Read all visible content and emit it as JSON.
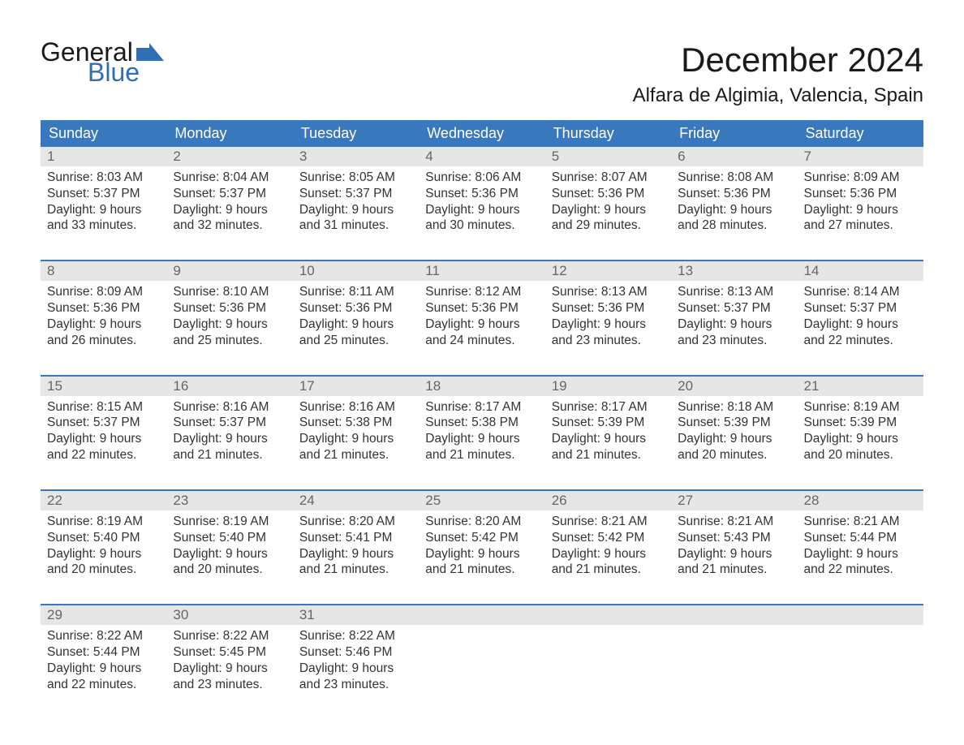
{
  "logo": {
    "text1": "General",
    "text2": "Blue",
    "flag_color": "#2f6eb5"
  },
  "title": "December 2024",
  "location": "Alfara de Algimia, Valencia, Spain",
  "colors": {
    "header_bg": "#3a78bd",
    "header_text": "#ffffff",
    "daynum_bg": "#e6e6e6",
    "daynum_text": "#666666",
    "body_text": "#333333",
    "week_border": "#3a78bd"
  },
  "days_of_week": [
    "Sunday",
    "Monday",
    "Tuesday",
    "Wednesday",
    "Thursday",
    "Friday",
    "Saturday"
  ],
  "weeks": [
    [
      {
        "n": "1",
        "sunrise": "8:03 AM",
        "sunset": "5:37 PM",
        "dl1": "9 hours",
        "dl2": "and 33 minutes."
      },
      {
        "n": "2",
        "sunrise": "8:04 AM",
        "sunset": "5:37 PM",
        "dl1": "9 hours",
        "dl2": "and 32 minutes."
      },
      {
        "n": "3",
        "sunrise": "8:05 AM",
        "sunset": "5:37 PM",
        "dl1": "9 hours",
        "dl2": "and 31 minutes."
      },
      {
        "n": "4",
        "sunrise": "8:06 AM",
        "sunset": "5:36 PM",
        "dl1": "9 hours",
        "dl2": "and 30 minutes."
      },
      {
        "n": "5",
        "sunrise": "8:07 AM",
        "sunset": "5:36 PM",
        "dl1": "9 hours",
        "dl2": "and 29 minutes."
      },
      {
        "n": "6",
        "sunrise": "8:08 AM",
        "sunset": "5:36 PM",
        "dl1": "9 hours",
        "dl2": "and 28 minutes."
      },
      {
        "n": "7",
        "sunrise": "8:09 AM",
        "sunset": "5:36 PM",
        "dl1": "9 hours",
        "dl2": "and 27 minutes."
      }
    ],
    [
      {
        "n": "8",
        "sunrise": "8:09 AM",
        "sunset": "5:36 PM",
        "dl1": "9 hours",
        "dl2": "and 26 minutes."
      },
      {
        "n": "9",
        "sunrise": "8:10 AM",
        "sunset": "5:36 PM",
        "dl1": "9 hours",
        "dl2": "and 25 minutes."
      },
      {
        "n": "10",
        "sunrise": "8:11 AM",
        "sunset": "5:36 PM",
        "dl1": "9 hours",
        "dl2": "and 25 minutes."
      },
      {
        "n": "11",
        "sunrise": "8:12 AM",
        "sunset": "5:36 PM",
        "dl1": "9 hours",
        "dl2": "and 24 minutes."
      },
      {
        "n": "12",
        "sunrise": "8:13 AM",
        "sunset": "5:36 PM",
        "dl1": "9 hours",
        "dl2": "and 23 minutes."
      },
      {
        "n": "13",
        "sunrise": "8:13 AM",
        "sunset": "5:37 PM",
        "dl1": "9 hours",
        "dl2": "and 23 minutes."
      },
      {
        "n": "14",
        "sunrise": "8:14 AM",
        "sunset": "5:37 PM",
        "dl1": "9 hours",
        "dl2": "and 22 minutes."
      }
    ],
    [
      {
        "n": "15",
        "sunrise": "8:15 AM",
        "sunset": "5:37 PM",
        "dl1": "9 hours",
        "dl2": "and 22 minutes."
      },
      {
        "n": "16",
        "sunrise": "8:16 AM",
        "sunset": "5:37 PM",
        "dl1": "9 hours",
        "dl2": "and 21 minutes."
      },
      {
        "n": "17",
        "sunrise": "8:16 AM",
        "sunset": "5:38 PM",
        "dl1": "9 hours",
        "dl2": "and 21 minutes."
      },
      {
        "n": "18",
        "sunrise": "8:17 AM",
        "sunset": "5:38 PM",
        "dl1": "9 hours",
        "dl2": "and 21 minutes."
      },
      {
        "n": "19",
        "sunrise": "8:17 AM",
        "sunset": "5:39 PM",
        "dl1": "9 hours",
        "dl2": "and 21 minutes."
      },
      {
        "n": "20",
        "sunrise": "8:18 AM",
        "sunset": "5:39 PM",
        "dl1": "9 hours",
        "dl2": "and 20 minutes."
      },
      {
        "n": "21",
        "sunrise": "8:19 AM",
        "sunset": "5:39 PM",
        "dl1": "9 hours",
        "dl2": "and 20 minutes."
      }
    ],
    [
      {
        "n": "22",
        "sunrise": "8:19 AM",
        "sunset": "5:40 PM",
        "dl1": "9 hours",
        "dl2": "and 20 minutes."
      },
      {
        "n": "23",
        "sunrise": "8:19 AM",
        "sunset": "5:40 PM",
        "dl1": "9 hours",
        "dl2": "and 20 minutes."
      },
      {
        "n": "24",
        "sunrise": "8:20 AM",
        "sunset": "5:41 PM",
        "dl1": "9 hours",
        "dl2": "and 21 minutes."
      },
      {
        "n": "25",
        "sunrise": "8:20 AM",
        "sunset": "5:42 PM",
        "dl1": "9 hours",
        "dl2": "and 21 minutes."
      },
      {
        "n": "26",
        "sunrise": "8:21 AM",
        "sunset": "5:42 PM",
        "dl1": "9 hours",
        "dl2": "and 21 minutes."
      },
      {
        "n": "27",
        "sunrise": "8:21 AM",
        "sunset": "5:43 PM",
        "dl1": "9 hours",
        "dl2": "and 21 minutes."
      },
      {
        "n": "28",
        "sunrise": "8:21 AM",
        "sunset": "5:44 PM",
        "dl1": "9 hours",
        "dl2": "and 22 minutes."
      }
    ],
    [
      {
        "n": "29",
        "sunrise": "8:22 AM",
        "sunset": "5:44 PM",
        "dl1": "9 hours",
        "dl2": "and 22 minutes."
      },
      {
        "n": "30",
        "sunrise": "8:22 AM",
        "sunset": "5:45 PM",
        "dl1": "9 hours",
        "dl2": "and 23 minutes."
      },
      {
        "n": "31",
        "sunrise": "8:22 AM",
        "sunset": "5:46 PM",
        "dl1": "9 hours",
        "dl2": "and 23 minutes."
      },
      {
        "empty": true
      },
      {
        "empty": true
      },
      {
        "empty": true
      },
      {
        "empty": true
      }
    ]
  ],
  "labels": {
    "sunrise": "Sunrise: ",
    "sunset": "Sunset: ",
    "daylight": "Daylight: "
  }
}
